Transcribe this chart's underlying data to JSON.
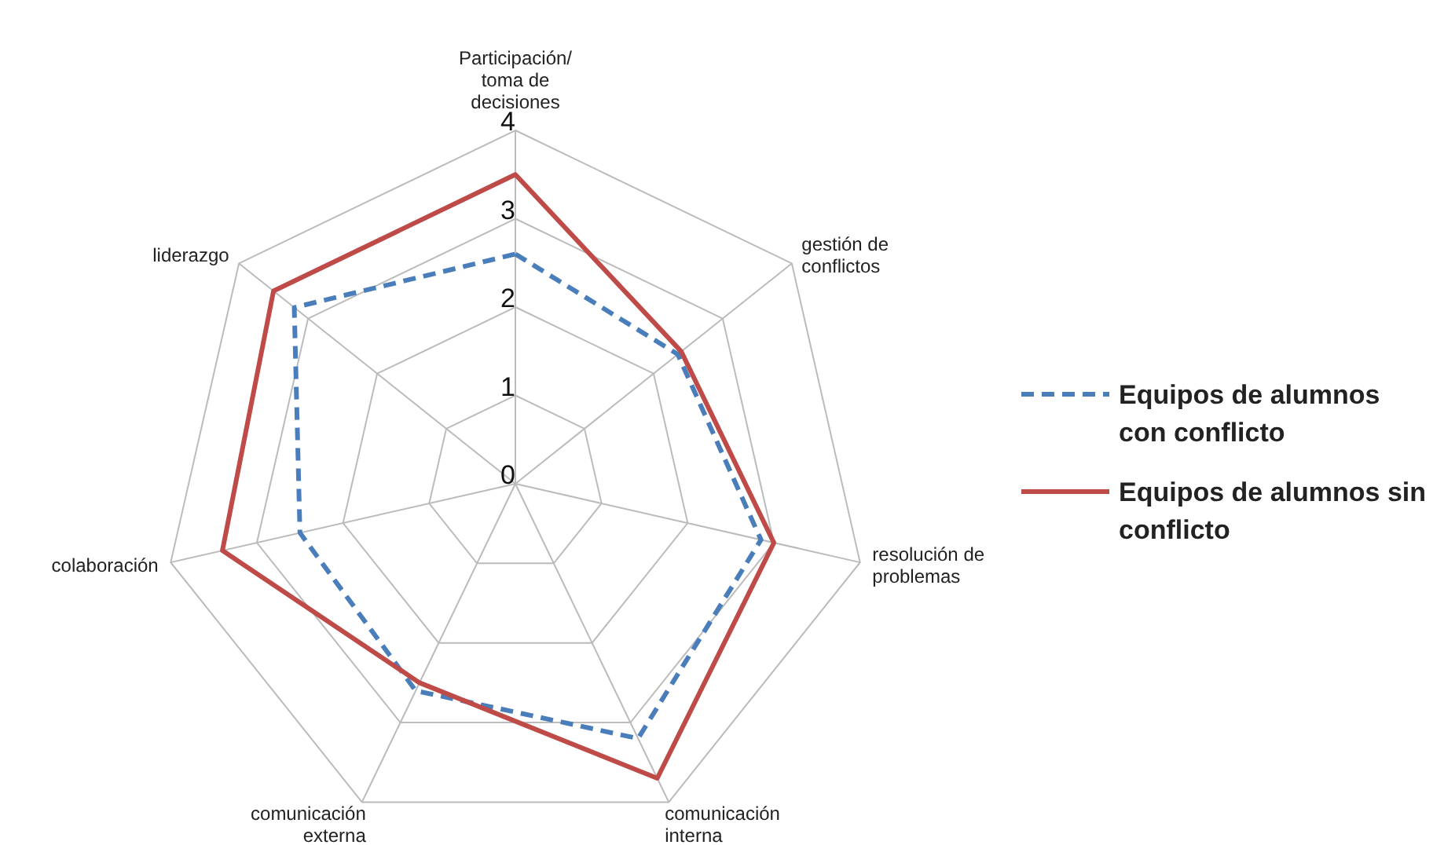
{
  "chart_data": {
    "type": "radar",
    "categories": [
      "Participación/ toma de decisiones",
      "gestión de conflictos",
      "resolución de problemas",
      "comunicación interna",
      "comunicación externa",
      "colaboración",
      "liderazgo"
    ],
    "series": [
      {
        "name": "Equipos de alumnos con conflicto",
        "color": "#4a7ebb",
        "line_style": "dashed",
        "values": [
          2.6,
          2.35,
          2.85,
          3.2,
          2.6,
          2.5,
          3.2
        ]
      },
      {
        "name": "Equipos de alumnos sin conflicto",
        "color": "#be4b48",
        "line_style": "solid",
        "values": [
          3.5,
          2.4,
          3.0,
          3.7,
          2.5,
          3.4,
          3.5
        ]
      }
    ],
    "ylim": [
      0,
      4
    ],
    "yticks": [
      0,
      1,
      2,
      3,
      4
    ],
    "grid": true,
    "legend": "right",
    "marker": "none"
  }
}
